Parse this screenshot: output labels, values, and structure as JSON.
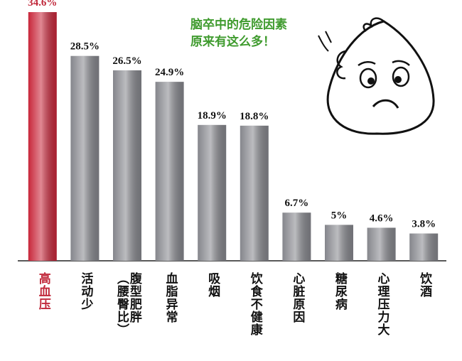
{
  "chart_data": {
    "type": "bar",
    "annotation": [
      "脑卒中的危险因素",
      "原来有这么多！"
    ],
    "categories": [
      "高血压",
      "活动少",
      "腹型肥胖\n（腰臀比）",
      "血脂异常",
      "吸烟",
      "饮食不健康",
      "心脏原因",
      "糖尿病",
      "心理压力大",
      "饮酒"
    ],
    "values": [
      34.6,
      28.5,
      26.5,
      24.9,
      18.9,
      18.8,
      6.7,
      5,
      4.6,
      3.8
    ],
    "value_labels": [
      "34.6%",
      "28.5%",
      "26.5%",
      "24.9%",
      "18.9%",
      "18.8%",
      "6.7%",
      "5%",
      "4.6%",
      "3.8%"
    ],
    "colors": [
      "#c8263a",
      "#85868c",
      "#85868c",
      "#85868c",
      "#85868c",
      "#85868c",
      "#85868c",
      "#85868c",
      "#85868c",
      "#85868c"
    ],
    "label_colors": [
      "#c0283a",
      "#111111",
      "#111111",
      "#111111",
      "#111111",
      "#111111",
      "#111111",
      "#111111",
      "#111111",
      "#111111"
    ],
    "annotation_color": "#3f9b2e",
    "ylim": [
      0,
      35
    ]
  }
}
